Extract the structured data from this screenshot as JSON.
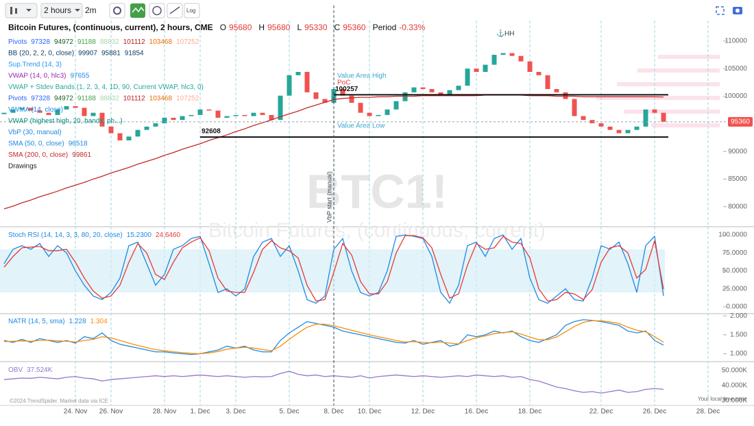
{
  "toolbar": {
    "interval": "2 hours",
    "range": "2m",
    "log": "Log"
  },
  "chart_data": [
    {
      "type": "line",
      "header": {
        "title": "Bitcoin Futures, (continuous, current), 2 hours, CME",
        "ohlc": [
          [
            "O",
            "95680"
          ],
          [
            "H",
            "95680"
          ],
          [
            "L",
            "95330"
          ],
          [
            "C",
            "95360"
          ]
        ],
        "period_label": "Period",
        "period": "-0.33%"
      },
      "legend": [
        {
          "label": "Pivots",
          "color": "#2962ff",
          "values": [
            "97328",
            "94972",
            "91188",
            "88832",
            "101112",
            "103468",
            "107252"
          ],
          "colors": [
            "#2962ff",
            "#1b5e20",
            "#43a047",
            "#a5d6a7",
            "#b71c1c",
            "#ef6c00",
            "#ffab91"
          ]
        },
        {
          "label": "BB (20, 2, 2, 0, close)",
          "color": "#0d3c61",
          "values": [
            "99907",
            "95881",
            "91854"
          ],
          "colors": [
            "#0d3c61",
            "#0d3c61",
            "#0d3c61"
          ]
        },
        {
          "label": "Sup.Trend (14, 3)",
          "color": "#2196f3"
        },
        {
          "label": "VWAP (14, 0, hlc3)",
          "color": "#9c27b0",
          "values": [
            "97655"
          ],
          "colors": [
            "#1e88e5"
          ]
        },
        {
          "label": "VWAP + Stdev Bands (1, 2, 3, 4, 1D, 90, Current VWAP, hlc3, 0)",
          "color": "#26a69a"
        },
        {
          "label": "Pivots",
          "color": "#2962ff",
          "values": [
            "97328",
            "94972",
            "91188",
            "88832",
            "101112",
            "103468",
            "107252"
          ],
          "colors": [
            "#2962ff",
            "#1b5e20",
            "#43a047",
            "#a5d6a7",
            "#b71c1c",
            "#ef6c00",
            "#ffab91"
          ]
        },
        {
          "label": "VWMA (14, close)",
          "color": "#1e88e5"
        },
        {
          "label": "VWAP (highest high, 20, bands, ph...)",
          "color": "#00897b"
        },
        {
          "label": "VbP (30, manual)",
          "color": "#1e88e5"
        },
        {
          "label": "SMA (50, 0, close)",
          "color": "#1e88e5",
          "values": [
            "96518"
          ],
          "colors": [
            "#1e88e5"
          ]
        },
        {
          "label": "SMA (200, 0, close)",
          "color": "#c62828",
          "values": [
            "99861"
          ],
          "colors": [
            "#c62828"
          ]
        },
        {
          "label": "Drawings",
          "color": "#222"
        }
      ],
      "categories": [
        null,
        null,
        null,
        null,
        null,
        null,
        null,
        null,
        "24. Nov",
        null,
        null,
        null,
        "26. Nov",
        null,
        null,
        null,
        null,
        null,
        "28. Nov",
        null,
        null,
        null,
        "1. Dec",
        null,
        null,
        null,
        "3. Dec",
        null,
        null,
        null,
        null,
        null,
        "5. Dec",
        null,
        null,
        null,
        null,
        "8. Dec",
        null,
        null,
        null,
        "10. Dec",
        null,
        null,
        null,
        null,
        null,
        "12. Dec",
        null,
        null,
        null,
        null,
        null,
        "16. Dec",
        null,
        null,
        null,
        null,
        null,
        "18. Dec",
        null,
        null,
        null,
        null,
        null,
        null,
        null,
        "22. Dec",
        null,
        null,
        null,
        null,
        null,
        "26. Dec",
        null,
        null,
        null,
        null,
        null,
        "28. Dec",
        null
      ],
      "series": [
        {
          "style": "bars",
          "color": "#26a69a",
          "down_color": "#ef5350",
          "values": [
            97000,
            97600,
            97900,
            97400,
            97000,
            96600,
            97600,
            98200,
            97900,
            96400,
            97000,
            94500,
            93300,
            92000,
            92700,
            93900,
            94500,
            95100,
            96100,
            95700,
            96400,
            96600,
            97600,
            97400,
            96100,
            96400,
            96600,
            96400,
            97000,
            96600,
            95700,
            100100,
            103800,
            104400,
            100700,
            99500,
            98800,
            101300,
            100100,
            98800,
            97000,
            96400,
            96600,
            97600,
            99100,
            100700,
            101600,
            101300,
            100700,
            100100,
            101100,
            101900,
            105000,
            104400,
            105700,
            107500,
            107800,
            107300,
            106300,
            104400,
            103800,
            101300,
            100700,
            99500,
            96400,
            95700,
            95100,
            94500,
            93900,
            93300,
            93900,
            94500,
            97600,
            97000,
            95360,
            null,
            null,
            null,
            null,
            null,
            null
          ]
        },
        {
          "name": "SMA (200, 0, close)",
          "color": "#c62828",
          "values": [
            79600,
            80100,
            80700,
            81200,
            81800,
            82300,
            82800,
            83400,
            83900,
            84400,
            85000,
            85500,
            86100,
            86600,
            87100,
            87700,
            88200,
            88700,
            89300,
            89800,
            90400,
            90900,
            91400,
            92000,
            92500,
            93000,
            93600,
            94100,
            94700,
            95200,
            95700,
            96300,
            96800,
            97300,
            97900,
            98400,
            98900,
            99400,
            99600,
            99700,
            99800,
            99800,
            99900,
            99900,
            100000,
            100000,
            100000,
            100100,
            100100,
            100100,
            100100,
            100100,
            100100,
            100100,
            100200,
            100200,
            100200,
            100200,
            100200,
            100100,
            100100,
            100100,
            100000,
            100000,
            100000,
            99900,
            99900,
            99900,
            99900,
            99900,
            99900,
            99900,
            99900,
            99900,
            99861,
            null,
            null,
            null,
            null,
            null,
            null
          ]
        }
      ],
      "levels": [
        {
          "value": 100257,
          "from": "8. Dec"
        },
        {
          "value": 92608,
          "from": "1. Dec"
        }
      ],
      "last": 95360,
      "ylim": [
        76500,
        113700
      ],
      "yticks": [
        80000,
        85000,
        90000,
        100000,
        105000,
        110000
      ],
      "grid": false,
      "annotations": {
        "hh": "HH",
        "vah": "Value Area High",
        "poc": "PoC",
        "val": "Value Area Low",
        "vbp": "VbP start (manual)",
        "vbp_at": "8. Dec"
      },
      "watermark": "BTC1!",
      "watermark_sub": "Bitcoin Futures, (continuous, current)"
    },
    {
      "type": "line",
      "legend": [
        {
          "label": "Stoch RSI (14, 14, 3, 3, 80, 20, close)",
          "color": "#1e88e5",
          "values": [
            "15.2300",
            "24.6460"
          ],
          "colors": [
            "#1e88e5",
            "#e53935"
          ]
        }
      ],
      "band": [
        20,
        80
      ],
      "series": [
        {
          "color": "#1e88e5",
          "values": [
            60,
            80,
            85,
            80,
            88,
            70,
            85,
            75,
            50,
            30,
            15,
            10,
            20,
            40,
            85,
            90,
            60,
            30,
            45,
            80,
            85,
            95,
            98,
            60,
            20,
            25,
            15,
            25,
            70,
            90,
            95,
            70,
            85,
            50,
            10,
            5,
            15,
            80,
            95,
            50,
            20,
            15,
            20,
            50,
            98,
            100,
            98,
            95,
            70,
            20,
            5,
            30,
            85,
            90,
            70,
            95,
            100,
            80,
            95,
            40,
            10,
            5,
            15,
            25,
            10,
            8,
            40,
            85,
            80,
            90,
            60,
            20,
            85,
            98,
            15.23,
            null,
            null,
            null,
            null,
            null,
            null
          ]
        },
        {
          "color": "#e53935",
          "values": [
            55,
            70,
            82,
            83,
            84,
            78,
            78,
            80,
            62,
            40,
            22,
            12,
            15,
            30,
            62,
            88,
            75,
            45,
            38,
            62,
            82,
            90,
            96,
            78,
            40,
            22,
            20,
            20,
            48,
            80,
            92,
            82,
            78,
            68,
            30,
            8,
            10,
            48,
            88,
            72,
            35,
            18,
            18,
            35,
            75,
            99,
            99,
            96,
            82,
            45,
            12,
            18,
            58,
            88,
            80,
            82,
            98,
            90,
            88,
            68,
            25,
            8,
            10,
            20,
            18,
            10,
            24,
            62,
            82,
            85,
            75,
            40,
            52,
            92,
            24.646,
            null,
            null,
            null,
            null,
            null,
            null
          ]
        }
      ],
      "ylim": [
        -8.6,
        109.5
      ],
      "yticks": [
        {
          "value": 100,
          "label": "100.0000"
        },
        {
          "value": 75,
          "label": "75.0000"
        },
        {
          "value": 50,
          "label": "50.0000"
        },
        {
          "value": 25,
          "label": "25.0000"
        },
        {
          "value": 0,
          "label": "0.0000"
        }
      ]
    },
    {
      "type": "line",
      "legend": [
        {
          "label": "NATR (14, 5, sma)",
          "color": "#1e88e5",
          "values": [
            "1.228",
            "1.304"
          ],
          "colors": [
            "#1e88e5",
            "#fb8c00"
          ]
        }
      ],
      "series": [
        {
          "color": "#1e88e5",
          "values": [
            1.35,
            1.3,
            1.38,
            1.3,
            1.4,
            1.35,
            1.3,
            1.35,
            1.28,
            1.45,
            1.4,
            1.55,
            1.35,
            1.25,
            1.2,
            1.15,
            1.1,
            1.05,
            1.05,
            1.02,
            1.0,
            0.98,
            1.0,
            1.05,
            1.1,
            1.2,
            1.15,
            1.2,
            1.1,
            1.05,
            1.05,
            1.35,
            1.55,
            1.7,
            1.85,
            1.8,
            1.75,
            1.7,
            1.6,
            1.55,
            1.5,
            1.45,
            1.4,
            1.35,
            1.3,
            1.28,
            1.35,
            1.25,
            1.3,
            1.35,
            1.2,
            1.25,
            1.5,
            1.45,
            1.5,
            1.6,
            1.55,
            1.6,
            1.45,
            1.35,
            1.3,
            1.4,
            1.5,
            1.75,
            1.85,
            1.9,
            1.88,
            1.85,
            1.8,
            1.75,
            1.6,
            1.55,
            1.6,
            1.35,
            1.228,
            null,
            null,
            null,
            null,
            null,
            null
          ]
        },
        {
          "color": "#fb8c00",
          "values": [
            1.32,
            1.33,
            1.34,
            1.33,
            1.35,
            1.36,
            1.34,
            1.33,
            1.31,
            1.35,
            1.38,
            1.45,
            1.42,
            1.35,
            1.28,
            1.22,
            1.16,
            1.11,
            1.08,
            1.05,
            1.03,
            1.01,
            1.0,
            1.02,
            1.06,
            1.12,
            1.15,
            1.17,
            1.15,
            1.11,
            1.08,
            1.2,
            1.38,
            1.55,
            1.7,
            1.78,
            1.78,
            1.74,
            1.68,
            1.62,
            1.56,
            1.5,
            1.45,
            1.4,
            1.35,
            1.31,
            1.32,
            1.3,
            1.29,
            1.31,
            1.28,
            1.26,
            1.35,
            1.42,
            1.47,
            1.53,
            1.56,
            1.58,
            1.52,
            1.44,
            1.37,
            1.37,
            1.44,
            1.58,
            1.72,
            1.83,
            1.87,
            1.87,
            1.84,
            1.8,
            1.7,
            1.62,
            1.58,
            1.45,
            1.304,
            null,
            null,
            null,
            null,
            null,
            null
          ]
        }
      ],
      "ylim": [
        0.81,
        2.04
      ],
      "yticks": [
        {
          "value": 2,
          "label": "2.000"
        },
        {
          "value": 1.5,
          "label": "1.500"
        },
        {
          "value": 1,
          "label": "1.000"
        }
      ]
    },
    {
      "type": "line",
      "legend": [
        {
          "label": "OBV",
          "color": "#9575cd",
          "values": [
            "37.524K"
          ],
          "colors": [
            "#9575cd"
          ]
        }
      ],
      "series": [
        {
          "color": "#9575cd",
          "values": [
            44000,
            44500,
            45000,
            44800,
            45500,
            45000,
            44500,
            45500,
            46000,
            45000,
            44500,
            43000,
            44000,
            44500,
            45000,
            45500,
            46000,
            46500,
            46000,
            46500,
            46000,
            46500,
            47000,
            46500,
            46000,
            46500,
            46000,
            45500,
            46000,
            45800,
            46000,
            48000,
            49500,
            47500,
            46500,
            47000,
            46000,
            46500,
            46000,
            45500,
            46500,
            45000,
            46000,
            46500,
            47000,
            46500,
            46000,
            46500,
            46000,
            45500,
            46000,
            46500,
            46000,
            47000,
            46500,
            46000,
            46500,
            45500,
            46000,
            44000,
            43000,
            41000,
            39000,
            38000,
            36500,
            35500,
            36000,
            35000,
            36000,
            37000,
            35500,
            36000,
            37500,
            38000,
            37524,
            null,
            null,
            null,
            null,
            null,
            null
          ]
        }
      ],
      "ylim": [
        27700,
        55000
      ],
      "yticks": [
        {
          "value": 50000,
          "label": "50.000K"
        },
        {
          "value": 40000,
          "label": "40.000K"
        },
        {
          "value": 30000,
          "label": "30.000K"
        }
      ]
    }
  ],
  "footer": {
    "copyright": "©2024 TrendSpider. Market data via ICE",
    "timezone": "Your local time zone"
  }
}
